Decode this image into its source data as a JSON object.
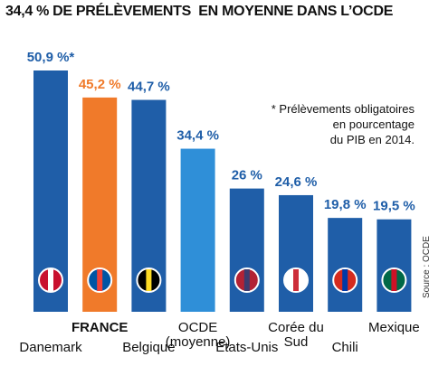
{
  "chart_data": {
    "type": "bar",
    "title": "34,4 % DE PRÉLÈVEMENTS  EN MOYENNE DANS L’OCDE",
    "note": "* Prélèvements obligatoires\nen pourcentage\ndu PIB en 2014.",
    "source": "Source : OCDE",
    "categories": [
      "Danemark",
      "FRANCE",
      "Belgique",
      "OCDE\n(moyenne)",
      "Etats-Unis",
      "Corée du Sud",
      "Chili",
      "Mexique"
    ],
    "values": [
      50.9,
      45.2,
      44.7,
      34.4,
      26,
      24.6,
      19.8,
      19.5
    ],
    "value_labels": [
      "50,9 %*",
      "45,2 %",
      "44,7 %",
      "34,4 %",
      "26 %",
      "24,6 %",
      "19,8 %",
      "19,5 %"
    ],
    "colors": [
      "#1f5ea8",
      "#f07a2a",
      "#1f5ea8",
      "#2f8fd8",
      "#1f5ea8",
      "#1f5ea8",
      "#1f5ea8",
      "#1f5ea8"
    ]
  }
}
